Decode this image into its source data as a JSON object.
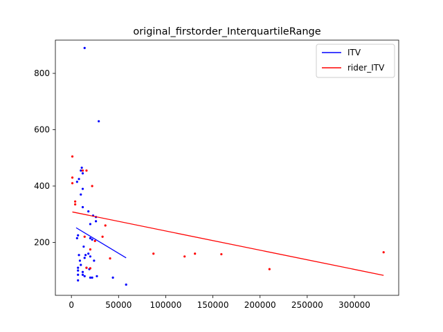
{
  "chart_data": {
    "type": "scatter",
    "title": "original_firstorder_InterquartileRange",
    "xlabel": "",
    "ylabel": "",
    "xlim": [
      -17000,
      347000
    ],
    "ylim": [
      12,
      918
    ],
    "xticks": [
      0,
      50000,
      100000,
      150000,
      200000,
      250000,
      300000
    ],
    "xtick_labels": [
      "0",
      "50000",
      "100000",
      "150000",
      "200000",
      "250000",
      "300000"
    ],
    "yticks": [
      200,
      400,
      600,
      800
    ],
    "ytick_labels": [
      "200",
      "400",
      "600",
      "800"
    ],
    "grid": false,
    "legend_position": "top-right",
    "series": [
      {
        "name": "ITV",
        "color": "#0000ff",
        "points": [
          [
            14000,
            890
          ],
          [
            29000,
            630
          ],
          [
            11000,
            465
          ],
          [
            12000,
            445
          ],
          [
            10000,
            455
          ],
          [
            8000,
            425
          ],
          [
            6000,
            415
          ],
          [
            12000,
            390
          ],
          [
            10000,
            370
          ],
          [
            12000,
            325
          ],
          [
            18000,
            310
          ],
          [
            23000,
            295
          ],
          [
            26000,
            290
          ],
          [
            26000,
            275
          ],
          [
            20000,
            265
          ],
          [
            7000,
            225
          ],
          [
            6000,
            215
          ],
          [
            20000,
            215
          ],
          [
            22000,
            210
          ],
          [
            13000,
            185
          ],
          [
            18000,
            160
          ],
          [
            15000,
            155
          ],
          [
            8000,
            155
          ],
          [
            20000,
            150
          ],
          [
            14000,
            145
          ],
          [
            9000,
            135
          ],
          [
            24000,
            135
          ],
          [
            10000,
            120
          ],
          [
            16000,
            110
          ],
          [
            7000,
            110
          ],
          [
            19000,
            105
          ],
          [
            7000,
            100
          ],
          [
            12000,
            95
          ],
          [
            7000,
            85
          ],
          [
            12000,
            85
          ],
          [
            14000,
            80
          ],
          [
            27000,
            80
          ],
          [
            20000,
            75
          ],
          [
            22000,
            75
          ],
          [
            44000,
            75
          ],
          [
            7000,
            65
          ],
          [
            58000,
            50
          ]
        ],
        "fit_line": [
          [
            5000,
            252
          ],
          [
            58000,
            145
          ]
        ]
      },
      {
        "name": "rider_ITV",
        "color": "#ff0000",
        "points": [
          [
            1000,
            505
          ],
          [
            1000,
            430
          ],
          [
            1000,
            410
          ],
          [
            16000,
            455
          ],
          [
            12000,
            455
          ],
          [
            22000,
            400
          ],
          [
            4000,
            345
          ],
          [
            4000,
            335
          ],
          [
            36000,
            260
          ],
          [
            33000,
            220
          ],
          [
            14000,
            220
          ],
          [
            25000,
            205
          ],
          [
            20000,
            175
          ],
          [
            87000,
            160
          ],
          [
            131000,
            160
          ],
          [
            159000,
            158
          ],
          [
            331000,
            165
          ],
          [
            120000,
            150
          ],
          [
            41000,
            143
          ],
          [
            16000,
            110
          ],
          [
            20000,
            108
          ],
          [
            210000,
            105
          ]
        ],
        "fit_line": [
          [
            1000,
            308
          ],
          [
            331000,
            83
          ]
        ]
      }
    ]
  }
}
